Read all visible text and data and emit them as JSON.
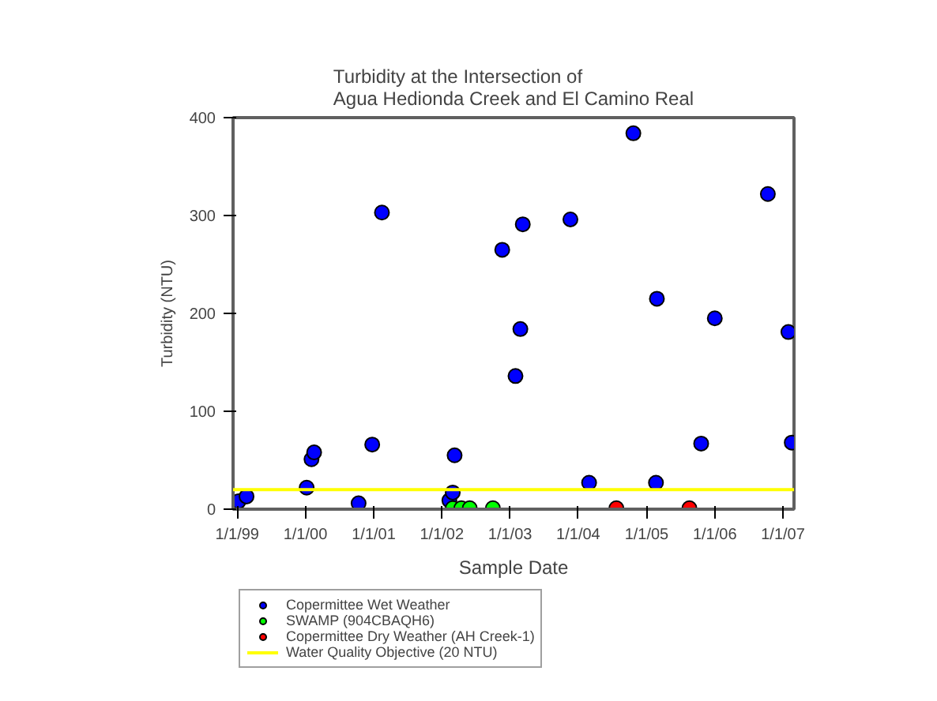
{
  "chart_data": {
    "type": "scatter",
    "title": "Turbidity at the Intersection of\nAgua Hedionda Creek and El Camino Real",
    "xlabel": "Sample Date",
    "ylabel": "Turbidity (NTU)",
    "xlim": [
      "1998-12-10",
      "2007-03-01"
    ],
    "ylim": [
      0,
      400
    ],
    "xticks": [
      {
        "value": "1999-01-01",
        "label": "1/1/99"
      },
      {
        "value": "2000-01-01",
        "label": "1/1/00"
      },
      {
        "value": "2001-01-01",
        "label": "1/1/01"
      },
      {
        "value": "2002-01-01",
        "label": "1/1/02"
      },
      {
        "value": "2003-01-01",
        "label": "1/1/03"
      },
      {
        "value": "2004-01-01",
        "label": "1/1/04"
      },
      {
        "value": "2005-01-01",
        "label": "1/1/05"
      },
      {
        "value": "2006-01-01",
        "label": "1/1/06"
      },
      {
        "value": "2007-01-01",
        "label": "1/1/07"
      }
    ],
    "yticks": [
      0,
      100,
      200,
      300,
      400
    ],
    "grid": false,
    "legend": "bottom",
    "marker": "circle",
    "series": [
      {
        "name": "Copermittee Wet Weather",
        "color": "#0000ff",
        "x": [
          "1999-01-08",
          "1999-02-20",
          "2000-01-08",
          "2000-02-03",
          "2000-02-17",
          "2000-10-12",
          "2000-12-24",
          "2001-02-14",
          "2002-02-10",
          "2002-02-28",
          "2002-03-10",
          "2002-11-20",
          "2003-01-30",
          "2003-02-25",
          "2003-03-10",
          "2003-11-20",
          "2004-02-28",
          "2004-10-22",
          "2005-02-25",
          "2005-02-20",
          "2005-10-20",
          "2006-01-01",
          "2006-10-12",
          "2007-01-30",
          "2007-02-17"
        ],
        "values": [
          8,
          13,
          22,
          51,
          58,
          6,
          66,
          303,
          9,
          17,
          55,
          265,
          136,
          184,
          291,
          296,
          27,
          384,
          215,
          27,
          67,
          195,
          322,
          181,
          68
        ]
      },
      {
        "name": "SWAMP (904CBAQH6)",
        "color": "#00ff00",
        "x": [
          "2002-02-28",
          "2002-04-15",
          "2002-05-30",
          "2002-10-01"
        ],
        "values": [
          1,
          1,
          1,
          1
        ]
      },
      {
        "name": "Copermittee Dry Weather (AH Creek-1)",
        "color": "#ff0000",
        "x": [
          "2004-07-23",
          "2005-08-18"
        ],
        "values": [
          1,
          1
        ]
      }
    ],
    "ref_lines": [
      {
        "axis": "y",
        "value": 20,
        "label": "Water Quality Objective (20 NTU)",
        "color": "#ffff00"
      }
    ]
  }
}
